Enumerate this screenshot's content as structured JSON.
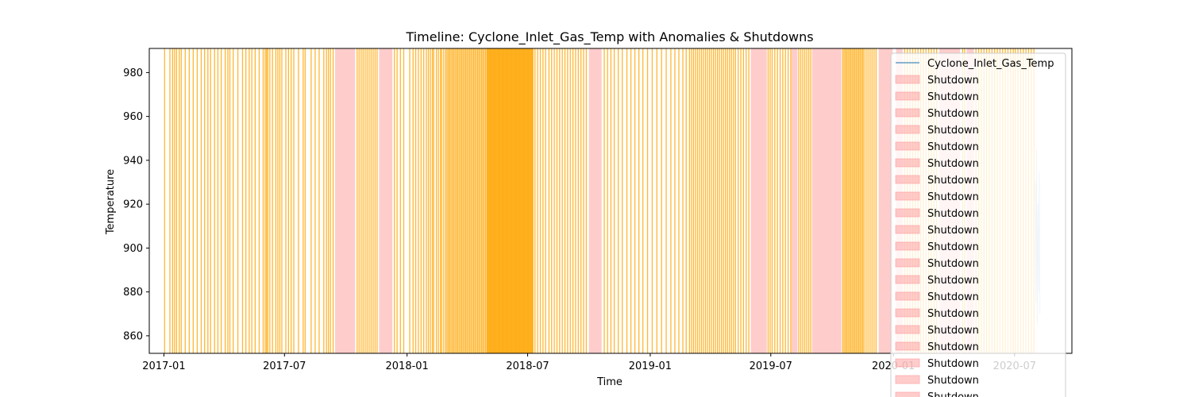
{
  "chart_data": {
    "type": "line",
    "title": "Timeline: Cyclone_Inlet_Gas_Temp with Anomalies & Shutdowns",
    "xlabel": "Time",
    "ylabel": "Temperature",
    "x_ticks": [
      "2017-01",
      "2017-07",
      "2018-01",
      "2018-07",
      "2019-01",
      "2019-07",
      "2020-01",
      "2020-07"
    ],
    "y_ticks": [
      860,
      880,
      900,
      920,
      940,
      960,
      980
    ],
    "xlim": [
      "2016-12-10",
      "2020-09-25"
    ],
    "ylim": [
      852,
      991
    ],
    "grid": false,
    "legend_position": "right",
    "colors": {
      "series_line": "#1f77b4",
      "anomaly": "#ffa500",
      "shutdown": "#ff9999"
    },
    "legend": {
      "series_label": "Cyclone_Inlet_Gas_Temp",
      "shutdown_label": "Shutdown",
      "shutdown_entry_count": 20
    },
    "series": [
      {
        "name": "Cyclone_Inlet_Gas_Temp",
        "x": [
          "2020-08-01",
          "2020-08-02",
          "2020-08-03",
          "2020-08-04",
          "2020-08-05",
          "2020-08-06",
          "2020-08-07",
          "2020-08-08"
        ],
        "values": [
          930,
          875,
          945,
          865,
          920,
          880,
          935,
          870
        ]
      }
    ],
    "shutdown_periods": [
      [
        "2017-09-15",
        "2017-10-15"
      ],
      [
        "2017-11-20",
        "2017-12-10"
      ],
      [
        "2018-10-01",
        "2018-10-20"
      ],
      [
        "2019-06-01",
        "2019-06-25"
      ],
      [
        "2019-08-01",
        "2019-08-10"
      ],
      [
        "2019-09-01",
        "2019-10-15"
      ],
      [
        "2019-12-10",
        "2019-12-31"
      ],
      [
        "2020-01-05",
        "2020-01-15"
      ],
      [
        "2020-03-10",
        "2020-04-10"
      ],
      [
        "2020-04-20",
        "2020-05-01"
      ]
    ],
    "anomaly_dates": [
      "2017-01-02",
      "2017-01-10",
      "2017-01-14",
      "2017-01-17",
      "2017-01-20",
      "2017-01-24",
      "2017-01-27",
      "2017-02-02",
      "2017-02-08",
      "2017-02-14",
      "2017-02-20",
      "2017-02-26",
      "2017-03-03",
      "2017-03-08",
      "2017-03-12",
      "2017-03-18",
      "2017-03-23",
      "2017-03-28",
      "2017-04-03",
      "2017-04-07",
      "2017-04-10",
      "2017-04-15",
      "2017-04-22",
      "2017-04-29",
      "2017-05-04",
      "2017-05-09",
      "2017-05-13",
      "2017-05-18",
      "2017-05-24",
      "2017-05-30",
      "2017-06-02",
      "2017-06-04",
      "2017-06-06",
      "2017-06-09",
      "2017-06-13",
      "2017-06-18",
      "2017-06-21",
      "2017-06-24",
      "2017-06-27",
      "2017-07-03",
      "2017-07-07",
      "2017-07-11",
      "2017-07-15",
      "2017-07-22",
      "2017-07-29",
      "2017-08-01",
      "2017-08-10",
      "2017-08-16",
      "2017-08-22",
      "2017-08-29",
      "2017-09-02",
      "2017-09-05",
      "2017-09-08",
      "2017-09-12",
      "2017-10-18",
      "2017-10-21",
      "2017-10-24",
      "2017-10-27",
      "2017-10-30",
      "2017-11-02",
      "2017-11-05",
      "2017-11-08",
      "2017-11-11",
      "2017-11-14",
      "2017-11-17",
      "2017-12-13",
      "2017-12-17",
      "2017-12-22",
      "2017-12-27",
      "2018-01-05",
      "2018-01-10",
      "2018-01-14",
      "2018-01-18",
      "2018-01-22",
      "2018-01-26",
      "2018-01-30",
      "2018-02-02",
      "2018-02-05",
      "2018-02-08",
      "2018-02-10",
      "2018-02-14",
      "2018-02-17",
      "2018-02-20",
      "2018-02-22",
      "2018-02-25",
      "2018-02-28",
      "2018-03-02",
      "2018-03-04",
      "2018-03-06",
      "2018-03-08",
      "2018-03-10",
      "2018-03-12",
      "2018-03-14",
      "2018-03-16",
      "2018-03-18",
      "2018-03-20",
      "2018-03-22",
      "2018-03-24",
      "2018-03-26",
      "2018-03-28",
      "2018-03-30",
      "2018-04-01",
      "2018-04-03",
      "2018-04-05",
      "2018-04-07",
      "2018-04-09",
      "2018-04-11",
      "2018-04-13",
      "2018-04-15",
      "2018-04-17",
      "2018-04-19",
      "2018-04-21",
      "2018-04-23",
      "2018-04-25",
      "2018-04-27",
      "2018-04-29",
      "2018-05-01",
      "2018-05-02",
      "2018-05-03",
      "2018-05-04",
      "2018-05-05",
      "2018-05-06",
      "2018-05-07",
      "2018-05-08",
      "2018-05-09",
      "2018-05-10",
      "2018-05-11",
      "2018-05-12",
      "2018-05-13",
      "2018-05-14",
      "2018-05-15",
      "2018-05-16",
      "2018-05-17",
      "2018-05-18",
      "2018-05-19",
      "2018-05-20",
      "2018-05-21",
      "2018-05-22",
      "2018-05-23",
      "2018-05-24",
      "2018-05-25",
      "2018-05-26",
      "2018-05-27",
      "2018-05-28",
      "2018-05-29",
      "2018-05-30",
      "2018-05-31",
      "2018-06-01",
      "2018-06-02",
      "2018-06-03",
      "2018-06-04",
      "2018-06-05",
      "2018-06-06",
      "2018-06-07",
      "2018-06-08",
      "2018-06-09",
      "2018-06-10",
      "2018-06-11",
      "2018-06-12",
      "2018-06-13",
      "2018-06-14",
      "2018-06-15",
      "2018-06-16",
      "2018-06-17",
      "2018-06-18",
      "2018-06-19",
      "2018-06-20",
      "2018-06-21",
      "2018-06-22",
      "2018-06-23",
      "2018-06-24",
      "2018-06-25",
      "2018-06-26",
      "2018-06-27",
      "2018-06-28",
      "2018-06-29",
      "2018-06-30",
      "2018-07-01",
      "2018-07-02",
      "2018-07-03",
      "2018-07-04",
      "2018-07-05",
      "2018-07-06",
      "2018-07-07",
      "2018-07-08",
      "2018-07-09",
      "2018-07-12",
      "2018-07-16",
      "2018-07-20",
      "2018-07-24",
      "2018-07-28",
      "2018-08-02",
      "2018-08-06",
      "2018-08-10",
      "2018-08-14",
      "2018-08-18",
      "2018-08-22",
      "2018-08-26",
      "2018-08-30",
      "2018-09-03",
      "2018-09-07",
      "2018-09-11",
      "2018-09-15",
      "2018-09-19",
      "2018-09-23",
      "2018-09-27",
      "2018-10-24",
      "2018-10-29",
      "2018-11-03",
      "2018-11-08",
      "2018-11-14",
      "2018-11-20",
      "2018-11-27",
      "2018-12-03",
      "2018-12-09",
      "2018-12-15",
      "2018-12-21",
      "2018-12-28",
      "2019-01-04",
      "2019-01-11",
      "2019-01-18",
      "2019-01-25",
      "2019-02-01",
      "2019-02-07",
      "2019-02-13",
      "2019-02-19",
      "2019-02-24",
      "2019-03-01",
      "2019-03-04",
      "2019-03-07",
      "2019-03-10",
      "2019-03-13",
      "2019-03-16",
      "2019-03-19",
      "2019-03-22",
      "2019-03-25",
      "2019-03-28",
      "2019-03-31",
      "2019-04-03",
      "2019-04-06",
      "2019-04-09",
      "2019-04-12",
      "2019-04-15",
      "2019-04-18",
      "2019-04-21",
      "2019-04-24",
      "2019-04-27",
      "2019-04-30",
      "2019-05-03",
      "2019-05-06",
      "2019-05-09",
      "2019-05-13",
      "2019-05-17",
      "2019-05-21",
      "2019-05-25",
      "2019-05-29",
      "2019-06-27",
      "2019-06-30",
      "2019-07-03",
      "2019-07-07",
      "2019-07-11",
      "2019-07-15",
      "2019-07-19",
      "2019-07-23",
      "2019-07-27",
      "2019-07-31",
      "2019-08-12",
      "2019-08-15",
      "2019-08-18",
      "2019-08-21",
      "2019-08-24",
      "2019-08-27",
      "2019-08-30",
      "2019-10-17",
      "2019-10-19",
      "2019-10-21",
      "2019-10-23",
      "2019-10-25",
      "2019-10-27",
      "2019-10-29",
      "2019-10-31",
      "2019-11-02",
      "2019-11-04",
      "2019-11-06",
      "2019-11-08",
      "2019-11-10",
      "2019-11-12",
      "2019-11-14",
      "2019-11-16",
      "2019-11-18",
      "2019-11-21",
      "2019-11-24",
      "2019-11-27",
      "2019-11-30",
      "2019-12-03",
      "2019-12-06",
      "2020-01-18",
      "2020-01-22",
      "2020-01-26",
      "2020-01-30",
      "2020-02-03",
      "2020-02-07",
      "2020-02-11",
      "2020-02-15",
      "2020-02-19",
      "2020-02-23",
      "2020-02-27",
      "2020-03-02",
      "2020-03-06",
      "2020-04-14",
      "2020-04-17",
      "2020-05-04",
      "2020-05-08",
      "2020-05-12",
      "2020-05-16",
      "2020-05-20",
      "2020-05-24",
      "2020-05-28",
      "2020-06-01",
      "2020-06-05",
      "2020-06-09",
      "2020-06-13",
      "2020-06-17",
      "2020-06-21",
      "2020-06-25",
      "2020-06-29",
      "2020-07-02",
      "2020-07-06",
      "2020-07-10",
      "2020-07-14",
      "2020-07-18",
      "2020-07-22",
      "2020-07-26",
      "2020-07-30"
    ]
  }
}
